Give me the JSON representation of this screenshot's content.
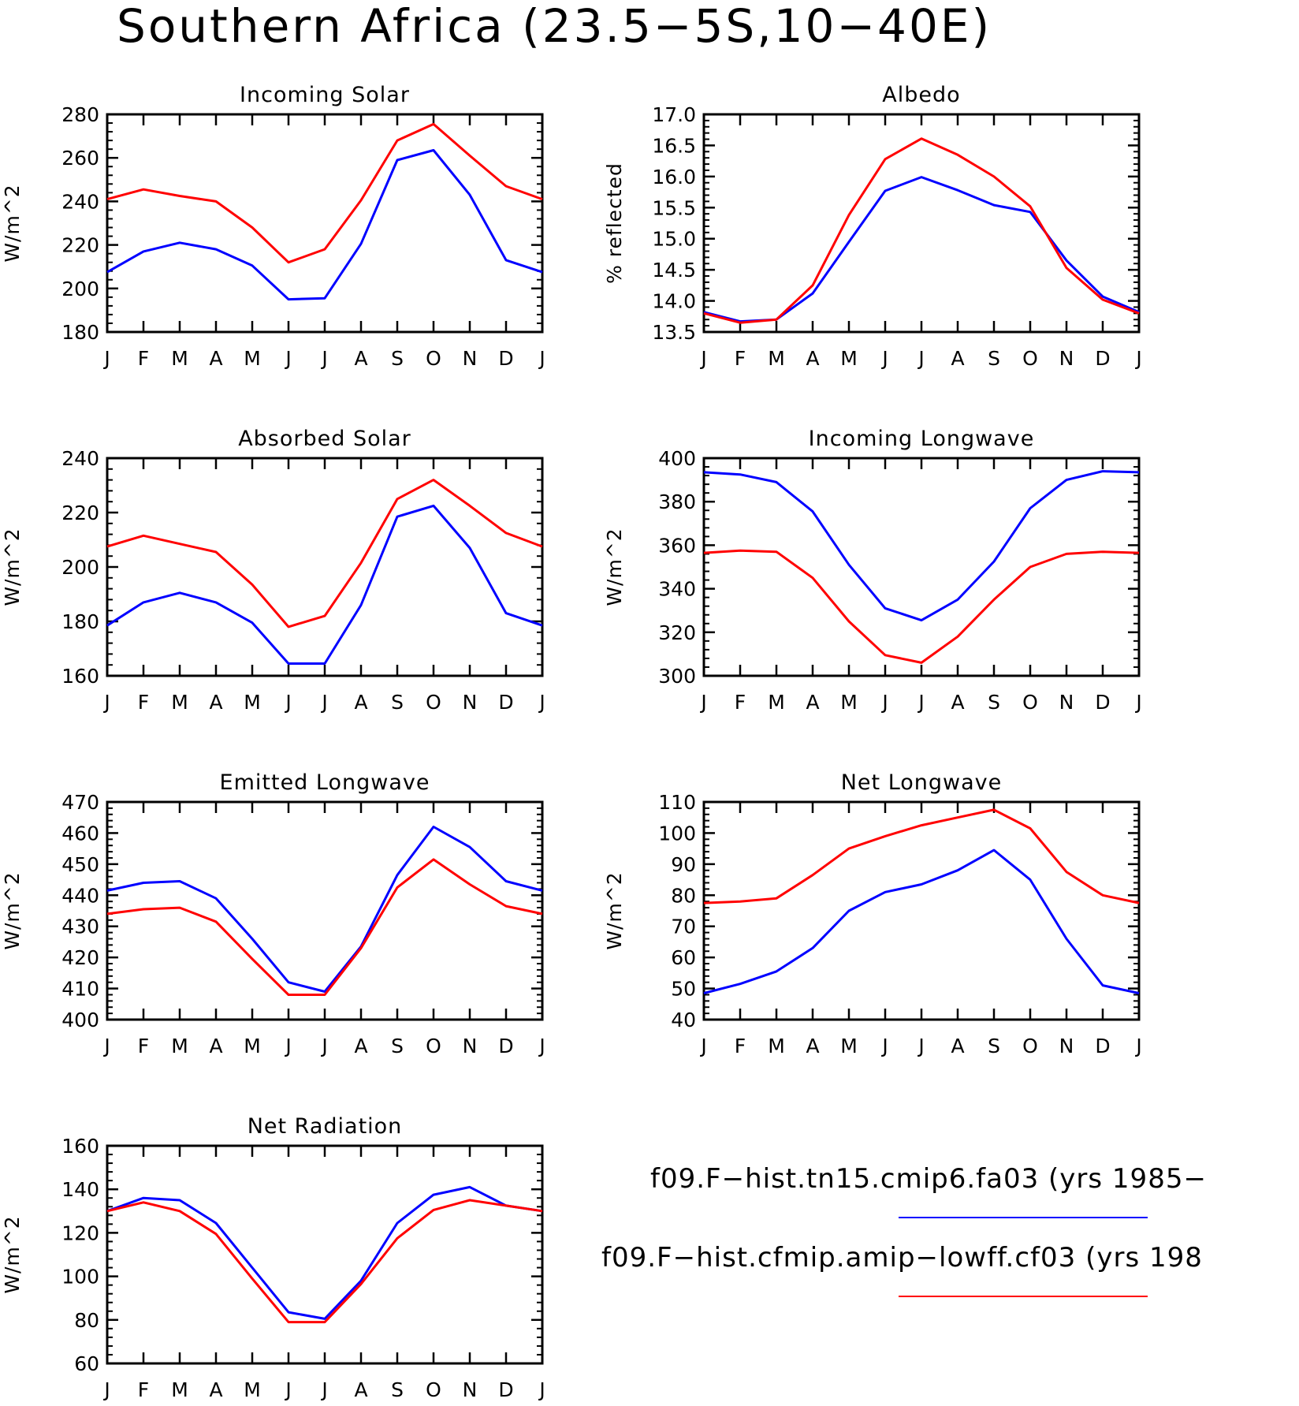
{
  "title": "Southern Africa (23.5−5S,10−40E)",
  "colors": {
    "case1": "#0000ff",
    "case2": "#ff0000"
  },
  "legend": {
    "entries": [
      {
        "label": "f09.F−hist.tn15.cmip6.fa03 (yrs 1985−",
        "color": "#0000ff"
      },
      {
        "label": "f09.F−hist.cfmip.amip−lowff.cf03 (yrs 198",
        "color": "#ff0000"
      }
    ]
  },
  "chart_data": [
    {
      "type": "line",
      "title": "Incoming Solar",
      "ylabel": "W/m^2",
      "categories": [
        "J",
        "F",
        "M",
        "A",
        "M",
        "J",
        "J",
        "A",
        "S",
        "O",
        "N",
        "D",
        "J"
      ],
      "ylim": [
        180,
        280
      ],
      "yticks": [
        180,
        200,
        220,
        240,
        260,
        280
      ],
      "ytick_labels": [
        "180",
        "200",
        "220",
        "240",
        "260",
        "280"
      ],
      "series": [
        {
          "color": "#0000ff",
          "values": [
            207.5,
            217,
            221,
            218,
            210.5,
            195,
            195.5,
            220.5,
            259,
            263.5,
            243,
            213,
            207.5
          ]
        },
        {
          "color": "#ff0000",
          "values": [
            241,
            245.5,
            242.5,
            240,
            228,
            212,
            218,
            240.5,
            268,
            275.5,
            261,
            247,
            241
          ]
        }
      ]
    },
    {
      "type": "line",
      "title": "Albedo",
      "ylabel": "% reflected",
      "categories": [
        "J",
        "F",
        "M",
        "A",
        "M",
        "J",
        "J",
        "A",
        "S",
        "O",
        "N",
        "D",
        "J"
      ],
      "ylim": [
        13.5,
        17.0
      ],
      "yticks": [
        13.5,
        14.0,
        14.5,
        15.0,
        15.5,
        16.0,
        16.5,
        17.0
      ],
      "ytick_labels": [
        "13.5",
        "14.0",
        "14.5",
        "15.0",
        "15.5",
        "16.0",
        "16.5",
        "17.0"
      ],
      "series": [
        {
          "color": "#0000ff",
          "values": [
            13.82,
            13.67,
            13.7,
            14.12,
            14.95,
            15.77,
            15.99,
            15.78,
            15.54,
            15.43,
            14.65,
            14.07,
            13.82
          ]
        },
        {
          "color": "#ff0000",
          "values": [
            13.8,
            13.65,
            13.7,
            14.25,
            15.38,
            16.28,
            16.61,
            16.35,
            16.0,
            15.52,
            14.53,
            14.02,
            13.8
          ]
        }
      ]
    },
    {
      "type": "line",
      "title": "Absorbed Solar",
      "ylabel": "W/m^2",
      "categories": [
        "J",
        "F",
        "M",
        "A",
        "M",
        "J",
        "J",
        "A",
        "S",
        "O",
        "N",
        "D",
        "J"
      ],
      "ylim": [
        160,
        240
      ],
      "yticks": [
        160,
        180,
        200,
        220,
        240
      ],
      "ytick_labels": [
        "160",
        "180",
        "200",
        "220",
        "240"
      ],
      "series": [
        {
          "color": "#0000ff",
          "values": [
            178.5,
            187,
            190.5,
            187,
            179.5,
            164.5,
            164.5,
            186,
            218.5,
            222.5,
            207,
            183,
            178.5
          ]
        },
        {
          "color": "#ff0000",
          "values": [
            207.5,
            211.5,
            208.5,
            205.5,
            193.5,
            178,
            182,
            201.5,
            225,
            232,
            222.5,
            212.5,
            207.5
          ]
        }
      ]
    },
    {
      "type": "line",
      "title": "Incoming Longwave",
      "ylabel": "W/m^2",
      "categories": [
        "J",
        "F",
        "M",
        "A",
        "M",
        "J",
        "J",
        "A",
        "S",
        "O",
        "N",
        "D",
        "J"
      ],
      "ylim": [
        300,
        400
      ],
      "yticks": [
        300,
        320,
        340,
        360,
        380,
        400
      ],
      "ytick_labels": [
        "300",
        "320",
        "340",
        "360",
        "380",
        "400"
      ],
      "series": [
        {
          "color": "#0000ff",
          "values": [
            393.5,
            392.5,
            389,
            375.5,
            351,
            331,
            325.5,
            335,
            352.5,
            377,
            390,
            394,
            393.5
          ]
        },
        {
          "color": "#ff0000",
          "values": [
            356.5,
            357.5,
            357,
            345,
            325,
            309.5,
            306,
            318,
            335,
            350,
            356,
            357,
            356.5
          ]
        }
      ]
    },
    {
      "type": "line",
      "title": "Emitted Longwave",
      "ylabel": "W/m^2",
      "categories": [
        "J",
        "F",
        "M",
        "A",
        "M",
        "J",
        "J",
        "A",
        "S",
        "O",
        "N",
        "D",
        "J"
      ],
      "ylim": [
        400,
        470
      ],
      "yticks": [
        400,
        410,
        420,
        430,
        440,
        450,
        460,
        470
      ],
      "ytick_labels": [
        "400",
        "410",
        "420",
        "430",
        "440",
        "450",
        "460",
        "470"
      ],
      "series": [
        {
          "color": "#0000ff",
          "values": [
            441.5,
            444,
            444.5,
            439,
            426,
            412,
            409,
            423.5,
            446.5,
            462,
            455.5,
            444.5,
            441.5
          ]
        },
        {
          "color": "#ff0000",
          "values": [
            434,
            435.5,
            436,
            431.5,
            419.5,
            408,
            408,
            423,
            442.5,
            451.5,
            443.5,
            436.5,
            434
          ]
        }
      ]
    },
    {
      "type": "line",
      "title": "Net Longwave",
      "ylabel": "W/m^2",
      "categories": [
        "J",
        "F",
        "M",
        "A",
        "M",
        "J",
        "J",
        "A",
        "S",
        "O",
        "N",
        "D",
        "J"
      ],
      "ylim": [
        40,
        110
      ],
      "yticks": [
        40,
        50,
        60,
        70,
        80,
        90,
        100,
        110
      ],
      "ytick_labels": [
        "40",
        "50",
        "60",
        "70",
        "80",
        "90",
        "100",
        "110"
      ],
      "series": [
        {
          "color": "#0000ff",
          "values": [
            48.5,
            51.5,
            55.5,
            63,
            75,
            81,
            83.5,
            88,
            94.5,
            85,
            66,
            51,
            48.5
          ]
        },
        {
          "color": "#ff0000",
          "values": [
            77.5,
            78,
            79,
            86.5,
            95,
            99,
            102.5,
            105,
            107.5,
            101.5,
            87.5,
            80,
            77.5
          ]
        }
      ]
    },
    {
      "type": "line",
      "title": "Net Radiation",
      "ylabel": "W/m^2",
      "categories": [
        "J",
        "F",
        "M",
        "A",
        "M",
        "J",
        "J",
        "A",
        "S",
        "O",
        "N",
        "D",
        "J"
      ],
      "ylim": [
        60,
        160
      ],
      "yticks": [
        60,
        80,
        100,
        120,
        140,
        160
      ],
      "ytick_labels": [
        "60",
        "80",
        "100",
        "120",
        "140",
        "160"
      ],
      "series": [
        {
          "color": "#0000ff",
          "values": [
            130,
            136,
            135,
            124.5,
            104,
            83.5,
            80.5,
            98,
            124.5,
            137.5,
            141,
            132.5,
            130
          ]
        },
        {
          "color": "#ff0000",
          "values": [
            130,
            134,
            130,
            119.5,
            99,
            79,
            79,
            96.5,
            117.5,
            130.5,
            135,
            132.5,
            130
          ]
        }
      ]
    }
  ]
}
